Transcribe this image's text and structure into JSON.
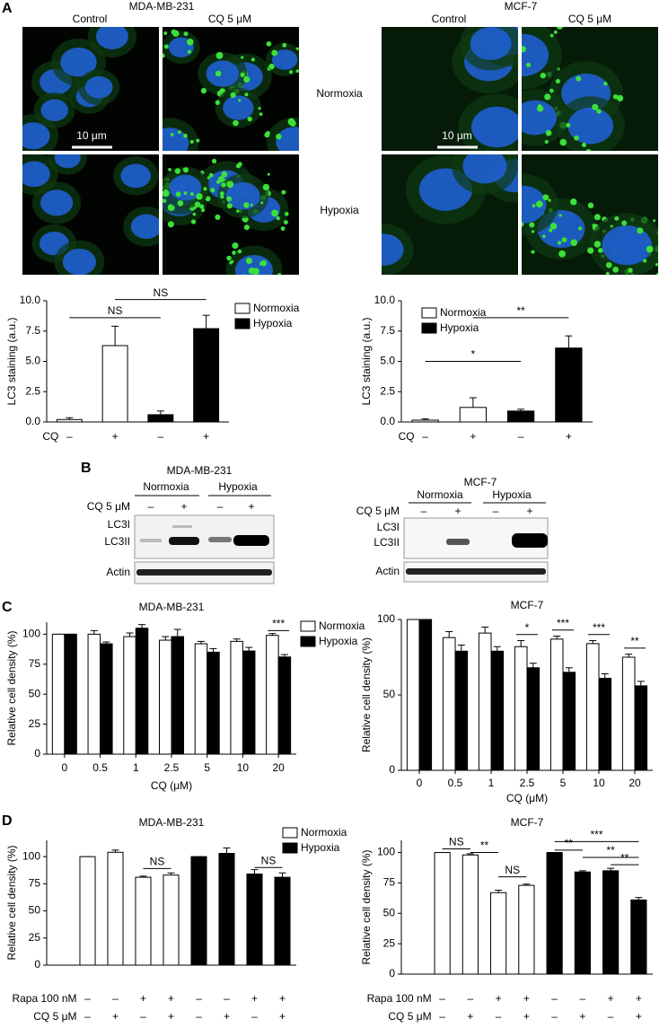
{
  "figure": {
    "panels": [
      "A",
      "B",
      "C",
      "D"
    ],
    "A": {
      "left": {
        "title": "MDA-MB-231",
        "columns": [
          "Control",
          "CQ 5 μM"
        ],
        "scale_bar": "10 μm"
      },
      "right": {
        "title": "MCF-7",
        "columns": [
          "Control",
          "CQ 5 μM"
        ],
        "scale_bar": "10 μm"
      },
      "rows": [
        "Normoxia",
        "Hypoxia"
      ]
    },
    "B": {
      "left": {
        "title": "MDA-MB-231",
        "groups": [
          "Normoxia",
          "Hypoxia"
        ],
        "treatment": "CQ 5 μM",
        "lanes": [
          "–",
          "+",
          "–",
          "+"
        ],
        "bands": [
          "LC3I",
          "LC3II",
          "Actin"
        ]
      },
      "right": {
        "title": "MCF-7",
        "groups": [
          "Normoxia",
          "Hypoxia"
        ],
        "treatment": "CQ 5 μM",
        "lanes": [
          "–",
          "+",
          "–",
          "+"
        ],
        "bands": [
          "LC3I",
          "LC3II",
          "Actin"
        ]
      }
    }
  },
  "chart_data": [
    {
      "type": "bar",
      "ylabel": "LC3 staining (a.u.)",
      "rows": [
        {
          "label": "CQ",
          "values": [
            "–",
            "+",
            "–",
            "+"
          ]
        }
      ],
      "series": [
        {
          "name": "Normoxia",
          "color": "#ffffff",
          "values": [
            0.2,
            6.3,
            null,
            null
          ],
          "errors": [
            0.15,
            1.6,
            null,
            null
          ]
        },
        {
          "name": "Hypoxia",
          "color": "#000000",
          "values": [
            null,
            null,
            0.6,
            7.7
          ],
          "errors": [
            null,
            null,
            0.3,
            1.1
          ]
        }
      ],
      "ylim": [
        0,
        10
      ],
      "yticks": [
        {
          "value": 0,
          "label": "0.0"
        },
        2.5,
        {
          "value": 5,
          "label": "5.0"
        },
        7.5,
        {
          "value": 10,
          "label": "10.0"
        }
      ],
      "annotations": [
        {
          "text": "NS",
          "from": 0,
          "to": 2,
          "level": 8.6
        },
        {
          "text": "NS",
          "from": 1,
          "to": 3,
          "level": 10.1
        }
      ],
      "legend": true
    },
    {
      "type": "bar",
      "ylabel": "LC3 staining (a.u.)",
      "rows": [
        {
          "label": "CQ",
          "values": [
            "–",
            "+",
            "–",
            "+"
          ]
        }
      ],
      "series": [
        {
          "name": "Normoxia",
          "color": "#ffffff",
          "values": [
            0.15,
            1.2,
            null,
            null
          ],
          "errors": [
            0.1,
            0.8,
            null,
            null
          ]
        },
        {
          "name": "Hypoxia",
          "color": "#000000",
          "values": [
            null,
            null,
            0.9,
            6.1
          ],
          "errors": [
            null,
            null,
            0.15,
            1.0
          ]
        }
      ],
      "ylim": [
        0,
        10
      ],
      "yticks": [
        {
          "value": 0,
          "label": "0.0"
        },
        2.5,
        {
          "value": 5,
          "label": "5.0"
        },
        7.5,
        {
          "value": 10,
          "label": "10.0"
        }
      ],
      "annotations": [
        {
          "text": "*",
          "from": 0,
          "to": 2,
          "level": 5.0
        },
        {
          "text": "**",
          "from": 1,
          "to": 3,
          "level": 8.6
        }
      ],
      "legend": true
    },
    {
      "type": "bar",
      "title": "MDA-MB-231",
      "ylabel": "Relative cell density (%)",
      "xlabel": "CQ (μM)",
      "categories": [
        "0",
        "0.5",
        "1",
        "2.5",
        "5",
        "10",
        "20"
      ],
      "series": [
        {
          "name": "Normoxia",
          "color": "#ffffff",
          "values": [
            100,
            100,
            98,
            95,
            92,
            94,
            99
          ],
          "errors": [
            0,
            3,
            3,
            3,
            2,
            2,
            1.5
          ]
        },
        {
          "name": "Hypoxia",
          "color": "#000000",
          "values": [
            100,
            92,
            105,
            98,
            85,
            86,
            81
          ],
          "errors": [
            0,
            1.5,
            3,
            6,
            3,
            3,
            2
          ]
        }
      ],
      "ylim": [
        0,
        110
      ],
      "yticks": [
        0,
        25,
        50,
        75,
        100
      ],
      "annotations": [
        {
          "text": "***",
          "from": 6,
          "to": 6,
          "level": 103
        }
      ],
      "legend": true
    },
    {
      "type": "bar",
      "title": "MCF-7",
      "ylabel": "Relative cell density (%)",
      "xlabel": "CQ (μM)",
      "categories": [
        "0",
        "0.5",
        "1",
        "2.5",
        "5",
        "10",
        "20"
      ],
      "series": [
        {
          "name": "Normoxia",
          "color": "#ffffff",
          "values": [
            100,
            88,
            91,
            82,
            87,
            84,
            75
          ],
          "errors": [
            0,
            4,
            4,
            4,
            2,
            2,
            2
          ]
        },
        {
          "name": "Hypoxia",
          "color": "#000000",
          "values": [
            100,
            79,
            79,
            68,
            65,
            61,
            56
          ],
          "errors": [
            0,
            4,
            3,
            3,
            3,
            3,
            3
          ]
        }
      ],
      "ylim": [
        0,
        100
      ],
      "yticks": [
        0,
        50,
        100
      ],
      "annotations": [
        {
          "text": "*",
          "from": 3,
          "to": 3,
          "level": 90
        },
        {
          "text": "***",
          "from": 4,
          "to": 4,
          "level": 93
        },
        {
          "text": "***",
          "from": 5,
          "to": 5,
          "level": 90
        },
        {
          "text": "**",
          "from": 6,
          "to": 6,
          "level": 81
        }
      ],
      "legend": false
    },
    {
      "type": "bar",
      "title": "MDA-MB-231",
      "ylabel": "Relative cell density (%)",
      "rows": [
        {
          "label": "Rapa 100 nM",
          "values": [
            "–",
            "–",
            "+",
            "+",
            "–",
            "–",
            "+",
            "+"
          ]
        },
        {
          "label": "CQ 5 μM",
          "values": [
            "–",
            "+",
            "–",
            "+",
            "–",
            "+",
            "–",
            "+"
          ]
        }
      ],
      "series": [
        {
          "name": "Normoxia",
          "color": "#ffffff",
          "values": [
            100,
            104,
            81,
            83,
            null,
            null,
            null,
            null
          ],
          "errors": [
            0,
            2,
            1,
            2,
            null,
            null,
            null,
            null
          ]
        },
        {
          "name": "Hypoxia",
          "color": "#000000",
          "values": [
            null,
            null,
            null,
            null,
            100,
            103,
            84,
            81
          ],
          "errors": [
            null,
            null,
            null,
            null,
            0,
            5,
            4,
            4
          ]
        }
      ],
      "ylim": [
        0,
        115
      ],
      "yticks": [
        0,
        25,
        50,
        75,
        100
      ],
      "annotations": [
        {
          "text": "NS",
          "from": 2,
          "to": 3,
          "level": 89
        },
        {
          "text": "NS",
          "from": 6,
          "to": 7,
          "level": 90
        }
      ],
      "legend": true
    },
    {
      "type": "bar",
      "title": "MCF-7",
      "ylabel": "Relative cell density (%)",
      "rows": [
        {
          "label": "Rapa 100 nM",
          "values": [
            "–",
            "–",
            "+",
            "+",
            "–",
            "–",
            "+",
            "+"
          ]
        },
        {
          "label": "CQ 5 μM",
          "values": [
            "–",
            "+",
            "–",
            "+",
            "–",
            "+",
            "–",
            "+"
          ]
        }
      ],
      "series": [
        {
          "name": "Normoxia",
          "color": "#ffffff",
          "values": [
            100,
            98,
            67,
            73,
            null,
            null,
            null,
            null
          ],
          "errors": [
            0,
            1,
            2,
            1,
            null,
            null,
            null,
            null
          ]
        },
        {
          "name": "Hypoxia",
          "color": "#000000",
          "values": [
            null,
            null,
            null,
            null,
            100,
            84,
            85,
            61
          ],
          "errors": [
            null,
            null,
            null,
            null,
            0,
            1,
            2,
            2
          ]
        }
      ],
      "ylim": [
        0,
        110
      ],
      "yticks": [
        0,
        25,
        50,
        75,
        100
      ],
      "annotations": [
        {
          "text": "NS",
          "from": 0,
          "to": 1,
          "level": 103
        },
        {
          "text": "**",
          "from": 1,
          "to": 2,
          "level": 100
        },
        {
          "text": "NS",
          "from": 2,
          "to": 3,
          "level": 80
        },
        {
          "text": "***",
          "from": 4,
          "to": 7,
          "level": 109
        },
        {
          "text": "**",
          "from": 4,
          "to": 5,
          "level": 102
        },
        {
          "text": "**",
          "from": 5,
          "to": 7,
          "level": 96
        },
        {
          "text": "**",
          "from": 6,
          "to": 7,
          "level": 90
        }
      ],
      "legend": false
    }
  ]
}
